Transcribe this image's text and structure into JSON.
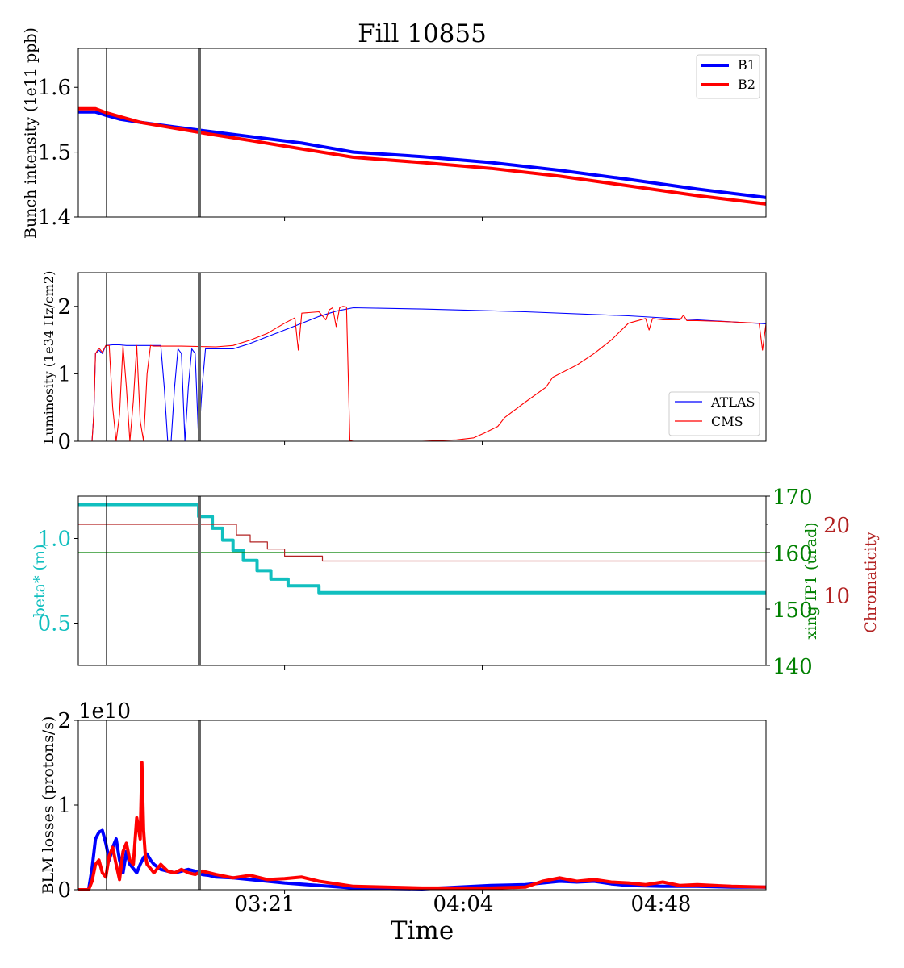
{
  "figure": {
    "title": "Fill 10855",
    "xlabel": "Time",
    "xticks": [
      "03:21",
      "04:04",
      "04:48"
    ]
  },
  "colors": {
    "b1": "#0000ff",
    "b2": "#ff0000",
    "cyan": "#11bfbf",
    "green": "#008000",
    "firebrick": "#b22222",
    "marker_gray": "#666666"
  },
  "chart_data": [
    {
      "type": "line",
      "panel": "intensity",
      "ylabel": "Bunch intensity (1e11 ppb)",
      "ylim": [
        1.4,
        1.66
      ],
      "yticks": [
        "1.4",
        "1.5",
        "1.6"
      ],
      "x_units": "minutes since 02:21",
      "legend": "top-right",
      "series": [
        {
          "name": "B1",
          "x": [
            0,
            5,
            8,
            12,
            18,
            28,
            38,
            50,
            65,
            80,
            100,
            120,
            140,
            160,
            180,
            200
          ],
          "y": [
            1.562,
            1.562,
            1.557,
            1.551,
            1.546,
            1.539,
            1.532,
            1.524,
            1.514,
            1.5,
            1.493,
            1.484,
            1.472,
            1.458,
            1.443,
            1.43
          ]
        },
        {
          "name": "B2",
          "x": [
            0,
            5,
            8,
            12,
            18,
            28,
            38,
            50,
            65,
            80,
            100,
            120,
            140,
            160,
            180,
            200
          ],
          "y": [
            1.567,
            1.567,
            1.561,
            1.555,
            1.546,
            1.537,
            1.528,
            1.518,
            1.505,
            1.492,
            1.484,
            1.475,
            1.463,
            1.448,
            1.433,
            1.42
          ]
        }
      ]
    },
    {
      "type": "line",
      "panel": "luminosity",
      "ylabel": "Luminosity (1e34 Hz/cm2)",
      "ylim": [
        0,
        2.5
      ],
      "yticks": [
        "0",
        "1",
        "2"
      ],
      "legend": "bottom-right",
      "series": [
        {
          "name": "ATLAS",
          "x": [
            0,
            4,
            4.5,
            5,
            6,
            7,
            8,
            10,
            12,
            14,
            18,
            22,
            24,
            25,
            26,
            27,
            28,
            29,
            30,
            31,
            32,
            33,
            34,
            35,
            36,
            37,
            40,
            45,
            50,
            55,
            60,
            65,
            70,
            75,
            80,
            100,
            130,
            160,
            180,
            200
          ],
          "y": [
            0,
            0,
            0.4,
            1.3,
            1.35,
            1.3,
            1.42,
            1.43,
            1.43,
            1.42,
            1.42,
            1.42,
            1.42,
            0.8,
            0,
            0,
            0.8,
            1.37,
            1.3,
            0,
            0.8,
            1.37,
            1.3,
            0,
            0.8,
            1.37,
            1.37,
            1.37,
            1.45,
            1.55,
            1.65,
            1.75,
            1.85,
            1.93,
            1.98,
            1.96,
            1.92,
            1.86,
            1.8,
            1.74
          ]
        },
        {
          "name": "CMS",
          "x": [
            0,
            4,
            4.5,
            5,
            6,
            7,
            8,
            9,
            10,
            11,
            12,
            13,
            14,
            15,
            16,
            17,
            18,
            19,
            20,
            21,
            22,
            30,
            40,
            45,
            50,
            55,
            60,
            63,
            64,
            65,
            70,
            72,
            73,
            74,
            75,
            76,
            77,
            78,
            79,
            80,
            100,
            110,
            115,
            118,
            122,
            124,
            130,
            136,
            138,
            145,
            150,
            155,
            160,
            165,
            166,
            167,
            170,
            175,
            176,
            177,
            180,
            190,
            198,
            199,
            200
          ],
          "y": [
            0,
            0,
            0.4,
            1.3,
            1.38,
            1.32,
            1.42,
            1.42,
            0.5,
            0,
            0.4,
            1.42,
            0.8,
            0,
            0.6,
            1.42,
            0.3,
            0,
            1.0,
            1.42,
            1.41,
            1.41,
            1.4,
            1.42,
            1.5,
            1.6,
            1.75,
            1.83,
            1.35,
            1.9,
            1.92,
            1.8,
            1.95,
            1.98,
            1.7,
            1.98,
            2.0,
            1.99,
            0.01,
            0.0,
            0.0,
            0.02,
            0.05,
            0.12,
            0.22,
            0.35,
            0.58,
            0.8,
            0.95,
            1.13,
            1.3,
            1.5,
            1.75,
            1.82,
            1.65,
            1.82,
            1.8,
            1.8,
            1.87,
            1.79,
            1.79,
            1.77,
            1.75,
            1.35,
            1.74
          ]
        }
      ]
    },
    {
      "type": "line",
      "panel": "optics",
      "ylabel": "beta* (m)",
      "ylim": [
        0.25,
        1.25
      ],
      "yticks": [
        "0.5",
        "1.0"
      ],
      "ylabel_right": "xing IP1 (urad)",
      "ylim_right": [
        140,
        170
      ],
      "yticks_right": [
        "140",
        "150",
        "160",
        "170"
      ],
      "ylabel_right2": "Chromaticity",
      "ylim_right2": [
        0,
        24
      ],
      "yticks_right2": [
        "10",
        "20"
      ],
      "series": [
        {
          "name": "beta*",
          "axis": "left",
          "x": [
            0,
            35,
            35,
            39,
            39,
            42,
            42,
            45,
            45,
            48,
            48,
            52,
            52,
            56,
            56,
            61,
            61,
            70,
            70,
            200
          ],
          "y": [
            1.2,
            1.2,
            1.13,
            1.13,
            1.06,
            1.06,
            0.99,
            0.99,
            0.93,
            0.93,
            0.87,
            0.87,
            0.81,
            0.81,
            0.76,
            0.76,
            0.72,
            0.72,
            0.68,
            0.68
          ]
        },
        {
          "name": "xing IP1",
          "axis": "right",
          "x": [
            0,
            200
          ],
          "y": [
            160,
            160
          ]
        },
        {
          "name": "Chromaticity",
          "axis": "right2",
          "x": [
            0,
            35,
            35,
            46,
            46,
            50,
            50,
            55,
            55,
            60,
            60,
            71,
            71,
            200
          ],
          "y": [
            20,
            20,
            20,
            20,
            18.5,
            18.5,
            17.5,
            17.5,
            16.5,
            16.5,
            15.5,
            15.5,
            14.8,
            14.8
          ]
        }
      ]
    },
    {
      "type": "line",
      "panel": "losses",
      "ylabel": "BLM losses (protons/s)",
      "offset_text": "1e10",
      "ylim": [
        0,
        2
      ],
      "yticks": [
        "0",
        "1",
        "2"
      ],
      "series": [
        {
          "name": "B1",
          "x": [
            0,
            3,
            4,
            5,
            6,
            7,
            8,
            9,
            10,
            11,
            12,
            13,
            14,
            15,
            16,
            17,
            18,
            19,
            20,
            21,
            22,
            24,
            26,
            28,
            30,
            32,
            34,
            36,
            38,
            40,
            45,
            50,
            55,
            60,
            70,
            80,
            100,
            120,
            130,
            135,
            140,
            145,
            150,
            155,
            160,
            170,
            180,
            190,
            200
          ],
          "y": [
            0,
            0,
            0.25,
            0.6,
            0.68,
            0.7,
            0.55,
            0.35,
            0.5,
            0.6,
            0.35,
            0.2,
            0.45,
            0.3,
            0.25,
            0.2,
            0.3,
            0.38,
            0.42,
            0.35,
            0.3,
            0.24,
            0.22,
            0.2,
            0.22,
            0.24,
            0.22,
            0.18,
            0.17,
            0.15,
            0.14,
            0.12,
            0.1,
            0.08,
            0.05,
            0.02,
            0.01,
            0.05,
            0.06,
            0.08,
            0.1,
            0.09,
            0.1,
            0.07,
            0.05,
            0.04,
            0.04,
            0.03,
            0.03
          ]
        },
        {
          "name": "B2",
          "x": [
            0,
            3,
            4,
            5,
            6,
            7,
            8,
            9,
            10,
            11,
            12,
            13,
            14,
            15,
            16,
            17,
            18,
            18.5,
            19,
            19.5,
            20,
            21,
            22,
            24,
            26,
            28,
            30,
            32,
            34,
            36,
            38,
            40,
            45,
            50,
            55,
            60,
            65,
            70,
            80,
            100,
            120,
            130,
            135,
            140,
            145,
            150,
            155,
            160,
            165,
            170,
            175,
            180,
            190,
            200
          ],
          "y": [
            0,
            0,
            0.1,
            0.3,
            0.35,
            0.2,
            0.15,
            0.4,
            0.5,
            0.3,
            0.12,
            0.45,
            0.55,
            0.35,
            0.3,
            0.85,
            0.6,
            1.5,
            0.7,
            0.4,
            0.3,
            0.25,
            0.2,
            0.3,
            0.22,
            0.2,
            0.24,
            0.2,
            0.18,
            0.22,
            0.2,
            0.18,
            0.14,
            0.17,
            0.12,
            0.13,
            0.15,
            0.1,
            0.04,
            0.02,
            0.02,
            0.03,
            0.1,
            0.14,
            0.1,
            0.12,
            0.09,
            0.08,
            0.06,
            0.09,
            0.05,
            0.06,
            0.04,
            0.03
          ]
        }
      ]
    }
  ]
}
